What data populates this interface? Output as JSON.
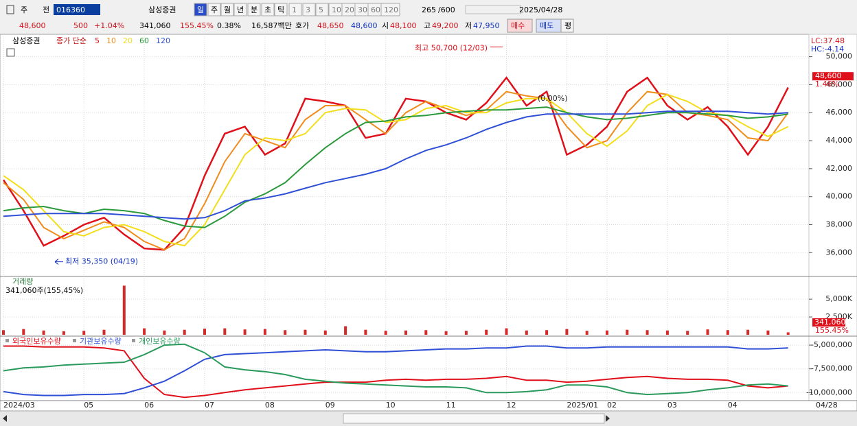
{
  "toolbar": {
    "row1": [
      "주",
      "전",
      "016360",
      "삼성증권",
      "일",
      "주",
      "월",
      "년",
      "분",
      "초",
      "틱",
      "1",
      "3",
      "5",
      "10",
      "20",
      "30",
      "60",
      "120",
      "265",
      "/600",
      "2025/04/28"
    ],
    "row2": [
      "48,600",
      "500",
      "+1.04%",
      "341,060",
      "155.45%",
      "0.38%",
      "16,587백만",
      "호가",
      "48,650",
      "48,600",
      "시",
      "48,100",
      "고",
      "49,200",
      "저",
      "47,950",
      "매수",
      "매도",
      "평"
    ]
  },
  "chart_data": [
    {
      "type": "line",
      "title": "삼성증권",
      "legend_label": "종가 단순",
      "categories": [
        "2024/03",
        null,
        null,
        null,
        "05",
        null,
        null,
        "06",
        null,
        null,
        "07",
        null,
        null,
        "08",
        null,
        null,
        "09",
        null,
        null,
        "10",
        null,
        null,
        "11",
        null,
        null,
        "12",
        null,
        null,
        "2025/01",
        null,
        "02",
        null,
        null,
        "03",
        null,
        null,
        "04",
        null,
        null,
        null
      ],
      "x_end_label": "04/28",
      "series": [
        {
          "name": "5",
          "color": "#e0101a",
          "values": [
            41200,
            39000,
            36500,
            37200,
            38000,
            38500,
            37300,
            36300,
            36200,
            37800,
            41500,
            44500,
            45000,
            43000,
            43800,
            47000,
            46800,
            46500,
            44200,
            44500,
            47000,
            46800,
            46000,
            45500,
            46700,
            48500,
            46500,
            47500,
            43000,
            43700,
            45000,
            47500,
            48500,
            46500,
            45500,
            46400,
            45000,
            43000,
            45000,
            47800
          ]
        },
        {
          "name": "10",
          "color": "#f08c1c",
          "values": [
            41000,
            39800,
            37800,
            37000,
            37600,
            38200,
            37800,
            36800,
            36200,
            37000,
            39500,
            42500,
            44500,
            44000,
            43500,
            45500,
            46500,
            46500,
            45500,
            44500,
            46000,
            46800,
            46300,
            45800,
            46200,
            47500,
            47200,
            47000,
            45000,
            43500,
            44000,
            46000,
            47500,
            47300,
            46000,
            45800,
            45500,
            44200,
            44000,
            46000
          ]
        },
        {
          "name": "20",
          "color": "#f2de1a",
          "values": [
            41500,
            40500,
            39000,
            37500,
            37200,
            37800,
            38000,
            37500,
            36800,
            36500,
            38000,
            40500,
            43000,
            44200,
            44000,
            44500,
            46000,
            46300,
            46200,
            45300,
            45500,
            46300,
            46500,
            46000,
            46000,
            46700,
            47000,
            47000,
            46000,
            44500,
            43600,
            44700,
            46500,
            47300,
            46800,
            46000,
            45800,
            45000,
            44300,
            45000
          ]
        },
        {
          "name": "60",
          "color": "#2a9a3c",
          "values": [
            39000,
            39200,
            39300,
            39000,
            38800,
            39100,
            39000,
            38800,
            38300,
            37900,
            37800,
            38600,
            39600,
            40200,
            41000,
            42300,
            43500,
            44500,
            45300,
            45400,
            45700,
            45800,
            46000,
            46100,
            46200,
            46200,
            46300,
            46400,
            46000,
            45700,
            45500,
            45600,
            45800,
            46000,
            46000,
            45900,
            45800,
            45600,
            45700,
            45900
          ]
        },
        {
          "name": "120",
          "color": "#2e4fd6",
          "values": [
            38600,
            38700,
            38800,
            38800,
            38800,
            38800,
            38700,
            38600,
            38500,
            38400,
            38500,
            39000,
            39700,
            39900,
            40200,
            40600,
            41000,
            41300,
            41600,
            42000,
            42700,
            43300,
            43700,
            44200,
            44800,
            45300,
            45700,
            45900,
            45900,
            45900,
            45900,
            45900,
            46000,
            46100,
            46100,
            46100,
            46100,
            46000,
            45900,
            46000
          ]
        }
      ],
      "ylim": [
        34300,
        51500
      ],
      "yticks": [
        {
          "value": 36000,
          "label": "36,000"
        },
        {
          "value": 38000,
          "label": "38,000"
        },
        {
          "value": 40000,
          "label": "40,000"
        },
        {
          "value": 42000,
          "label": "42,000"
        },
        {
          "value": 44000,
          "label": "44,000"
        },
        {
          "value": 46000,
          "label": "46,000"
        },
        {
          "value": 48000,
          "label": "48,000"
        },
        {
          "value": 50000,
          "label": "50,000"
        }
      ],
      "grid": true,
      "high_label": "최고 50,700 (12/03)",
      "high": 50700,
      "low_label": "최저 35,350 (04/19)",
      "low": 35350,
      "note": "(0.00%)",
      "side_labels": [
        "LC:37.48",
        "HC:-4.14"
      ],
      "last": 48600,
      "last_label": "48,600",
      "change_label": "1.46%"
    },
    {
      "type": "bar",
      "title": "거래량",
      "subtitle": "341,060주(155,45%)",
      "color": "#d42a2a",
      "values": [
        650000,
        800000,
        600000,
        500000,
        550000,
        700000,
        6900000,
        900000,
        600000,
        700000,
        850000,
        900000,
        750000,
        800000,
        650000,
        700000,
        600000,
        1200000,
        700000,
        550000,
        600000,
        650000,
        500000,
        550000,
        700000,
        900000,
        600000,
        650000,
        800000,
        550000,
        600000,
        700000,
        650000,
        600000,
        550000,
        750000,
        650000,
        700000,
        600000,
        341060
      ],
      "ylim": [
        0,
        8000000
      ],
      "yticks": [
        {
          "value": 2500000,
          "label": "2,500K"
        },
        {
          "value": 5000000,
          "label": "5,000K"
        }
      ],
      "last_label": "341,060",
      "ratio_label": "155.45%"
    },
    {
      "type": "line",
      "series": [
        {
          "name": "외국인보유수량",
          "color": "#e0101a",
          "values": [
            -5100000,
            -5100000,
            -5200000,
            -5200000,
            -5200000,
            -5300000,
            -5600000,
            -8500000,
            -10200000,
            -10500000,
            -10300000,
            -10000000,
            -9700000,
            -9500000,
            -9300000,
            -9100000,
            -8900000,
            -8900000,
            -8900000,
            -8700000,
            -8600000,
            -8700000,
            -8600000,
            -8600000,
            -8500000,
            -8300000,
            -8700000,
            -8700000,
            -8900000,
            -8800000,
            -8600000,
            -8400000,
            -8300000,
            -8500000,
            -8600000,
            -8600000,
            -8700000,
            -9300000,
            -9500000,
            -9300000
          ]
        },
        {
          "name": "기관보유수량",
          "color": "#2e4fd6",
          "values": [
            -9900000,
            -10200000,
            -10300000,
            -10300000,
            -10200000,
            -10200000,
            -10100000,
            -9500000,
            -8800000,
            -7700000,
            -6500000,
            -6000000,
            -5900000,
            -5800000,
            -5700000,
            -5600000,
            -5500000,
            -5600000,
            -5700000,
            -5700000,
            -5600000,
            -5500000,
            -5400000,
            -5400000,
            -5300000,
            -5300000,
            -5100000,
            -5100000,
            -5300000,
            -5300000,
            -5200000,
            -5200000,
            -5200000,
            -5200000,
            -5200000,
            -5200000,
            -5200000,
            -5400000,
            -5400000,
            -5300000
          ]
        },
        {
          "name": "개인보유수량",
          "color": "#2a9a5c",
          "values": [
            -7700000,
            -7400000,
            -7300000,
            -7100000,
            -7000000,
            -6900000,
            -6800000,
            -6000000,
            -5000000,
            -4900000,
            -5800000,
            -7300000,
            -7600000,
            -7800000,
            -8100000,
            -8600000,
            -8800000,
            -9000000,
            -9100000,
            -9200000,
            -9300000,
            -9400000,
            -9400000,
            -9500000,
            -10000000,
            -10000000,
            -9900000,
            -9700000,
            -9200000,
            -9200000,
            -9400000,
            -10000000,
            -10200000,
            -10100000,
            -10000000,
            -9700000,
            -9500000,
            -9200000,
            -9100000,
            -9300000
          ]
        }
      ],
      "ylim": [
        -10700000,
        -4200000
      ],
      "yticks": [
        {
          "value": -5000000,
          "label": "-5,000,000"
        },
        {
          "value": -7500000,
          "label": "-7,500,000"
        },
        {
          "value": -10000000,
          "label": "-10,000,000"
        }
      ]
    }
  ]
}
